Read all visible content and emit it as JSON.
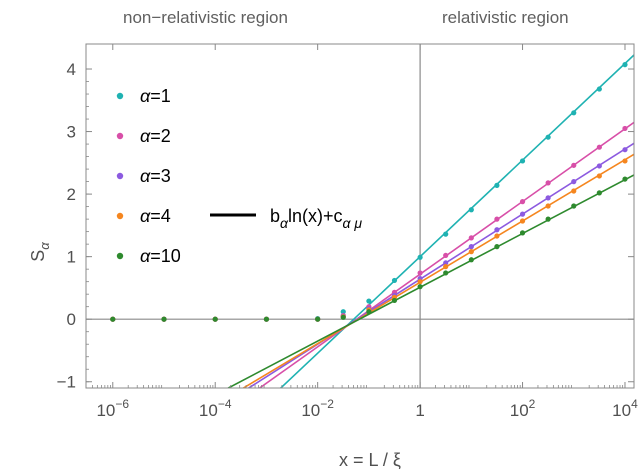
{
  "header": {
    "left_region": "non−relativistic region",
    "right_region": "relativistic region"
  },
  "chart_data": {
    "type": "scatter",
    "x_scale": "log",
    "xlabel": "x = L / ξ",
    "ylabel": "S",
    "ylabel_sub": "α",
    "xlim": [
      3e-07,
      15000.0
    ],
    "ylim": [
      -1.1,
      4.4
    ],
    "x_ticks": [
      {
        "value": 1e-06,
        "base": "10",
        "exp": "−6"
      },
      {
        "value": 0.0001,
        "base": "10",
        "exp": "−4"
      },
      {
        "value": 0.01,
        "base": "10",
        "exp": "−2"
      },
      {
        "value": 1,
        "base": "1",
        "exp": ""
      },
      {
        "value": 100,
        "base": "10",
        "exp": "2"
      },
      {
        "value": 10000,
        "base": "10",
        "exp": "4"
      }
    ],
    "y_ticks": [
      {
        "value": -1,
        "label": "−1"
      },
      {
        "value": 0,
        "label": "0"
      },
      {
        "value": 1,
        "label": "1"
      },
      {
        "value": 2,
        "label": "2"
      },
      {
        "value": 3,
        "label": "3"
      },
      {
        "value": 4,
        "label": "4"
      }
    ],
    "series": [
      {
        "name": "α=1",
        "color": "#1fb2b2",
        "x": [
          1e-06,
          1e-05,
          0.0001,
          0.001,
          0.01,
          0.0316,
          0.1,
          0.316,
          1,
          3.16,
          10,
          31.6,
          100,
          316,
          1000,
          3160,
          10000
        ],
        "y": [
          0,
          0,
          0,
          0,
          0.01,
          0.12,
          0.29,
          0.62,
          0.99,
          1.36,
          1.75,
          2.14,
          2.53,
          2.91,
          3.3,
          3.68,
          4.07
        ],
        "fit": {
          "slope_per_decade": 0.772,
          "intercept": 1.0
        }
      },
      {
        "name": "α=2",
        "color": "#d84fa8",
        "x": [
          1e-06,
          1e-05,
          0.0001,
          0.001,
          0.01,
          0.0316,
          0.1,
          0.316,
          1,
          3.16,
          10,
          31.6,
          100,
          316,
          1000,
          3160,
          10000
        ],
        "y": [
          0,
          0,
          0,
          0,
          0,
          0.06,
          0.2,
          0.43,
          0.74,
          1.02,
          1.3,
          1.6,
          1.88,
          2.18,
          2.46,
          2.75,
          3.05
        ],
        "fit": {
          "slope_per_decade": 0.581,
          "intercept": 0.72
        }
      },
      {
        "name": "α=3",
        "color": "#8c5ae0",
        "x": [
          1e-06,
          1e-05,
          0.0001,
          0.001,
          0.01,
          0.0316,
          0.1,
          0.316,
          1,
          3.16,
          10,
          31.6,
          100,
          316,
          1000,
          3160,
          10000
        ],
        "y": [
          0,
          0,
          0,
          0,
          0,
          0.05,
          0.17,
          0.38,
          0.65,
          0.9,
          1.16,
          1.43,
          1.68,
          1.94,
          2.2,
          2.45,
          2.71
        ],
        "fit": {
          "slope_per_decade": 0.52,
          "intercept": 0.64
        }
      },
      {
        "name": "α=4",
        "color": "#f5861f",
        "x": [
          1e-06,
          1e-05,
          0.0001,
          0.001,
          0.01,
          0.0316,
          0.1,
          0.316,
          1,
          3.16,
          10,
          31.6,
          100,
          316,
          1000,
          3160,
          10000
        ],
        "y": [
          0,
          0,
          0,
          0,
          0,
          0.04,
          0.15,
          0.35,
          0.6,
          0.84,
          1.08,
          1.33,
          1.57,
          1.81,
          2.05,
          2.29,
          2.53
        ],
        "fit": {
          "slope_per_decade": 0.49,
          "intercept": 0.59
        }
      },
      {
        "name": "α=10",
        "color": "#2e8a2e",
        "x": [
          1e-06,
          1e-05,
          0.0001,
          0.001,
          0.01,
          0.0316,
          0.1,
          0.316,
          1,
          3.16,
          10,
          31.6,
          100,
          316,
          1000,
          3160,
          10000
        ],
        "y": [
          0,
          0,
          0,
          0,
          0,
          0.03,
          0.12,
          0.3,
          0.52,
          0.74,
          0.95,
          1.16,
          1.38,
          1.6,
          1.81,
          2.02,
          2.24
        ],
        "fit": {
          "slope_per_decade": 0.43,
          "intercept": 0.51
        }
      }
    ],
    "fit_legend": {
      "b": "b",
      "b_sub": "α",
      "middle": "ln(x)+c",
      "c_sub": "α μ",
      "color": "#000000"
    },
    "reference_lines": {
      "x": 1,
      "y": 0
    },
    "grid": false,
    "legend_position": "top-left"
  }
}
